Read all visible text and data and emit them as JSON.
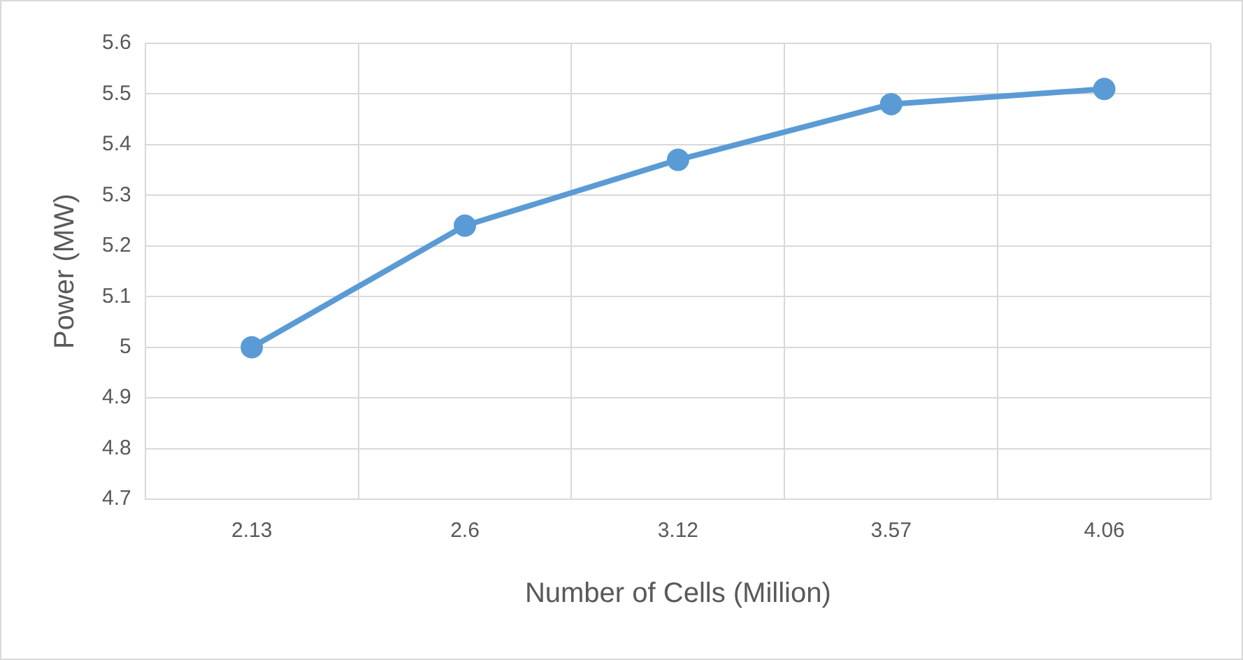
{
  "chart_data": {
    "type": "line",
    "xlabel": "Number of Cells (Million)",
    "ylabel": "Power (MW)",
    "categories": [
      "2.13",
      "2.6",
      "3.12",
      "3.57",
      "4.06"
    ],
    "series": [
      {
        "color": "#5b9bd5",
        "values": [
          5.0,
          5.24,
          5.37,
          5.48,
          5.51
        ]
      }
    ],
    "ylim": [
      4.7,
      5.6
    ],
    "yticks": [
      {
        "value": 4.7,
        "label": "4.7"
      },
      {
        "value": 4.8,
        "label": "4.8"
      },
      {
        "value": 4.9,
        "label": "4.9"
      },
      {
        "value": 5,
        "label": "5"
      },
      {
        "value": 5.1,
        "label": "5.1"
      },
      {
        "value": 5.2,
        "label": "5.2"
      },
      {
        "value": 5.3,
        "label": "5.3"
      },
      {
        "value": 5.4,
        "label": "5.4"
      },
      {
        "value": 5.5,
        "label": "5.5"
      },
      {
        "value": 5.6,
        "label": "5.6"
      }
    ],
    "grid": true,
    "legend": false,
    "marker": "circle",
    "line_style": "solid"
  }
}
